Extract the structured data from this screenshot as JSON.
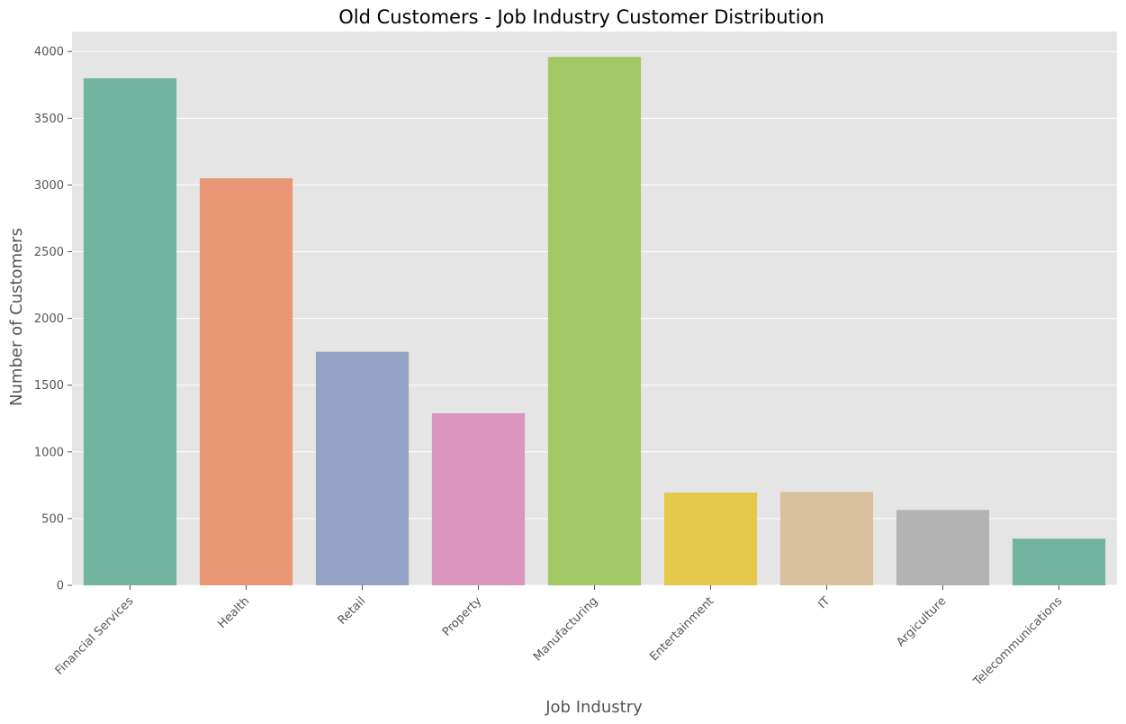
{
  "chart_data": {
    "type": "bar",
    "title": "Old Customers - Job Industry Customer Distribution",
    "xlabel": "Job Industry",
    "ylabel": "Number of Customers",
    "categories": [
      "Financial Services",
      "Health",
      "Retail",
      "Property",
      "Manufacturing",
      "Entertainment",
      "IT",
      "Argiculture",
      "Telecommunications"
    ],
    "values": [
      3800,
      3050,
      1750,
      1290,
      3960,
      695,
      700,
      565,
      350
    ],
    "colors": [
      "#73b4a0",
      "#e99675",
      "#94a3c3",
      "#db96c0",
      "#a2c865",
      "#e4c84a",
      "#d9c19d",
      "#b3b3b3",
      "#73b4a0"
    ],
    "ylim": [
      0,
      4150
    ],
    "yticks": [
      0,
      500,
      1000,
      1500,
      2000,
      2500,
      3000,
      3500,
      4000
    ],
    "grid": true,
    "background": "#e5e5e5"
  }
}
